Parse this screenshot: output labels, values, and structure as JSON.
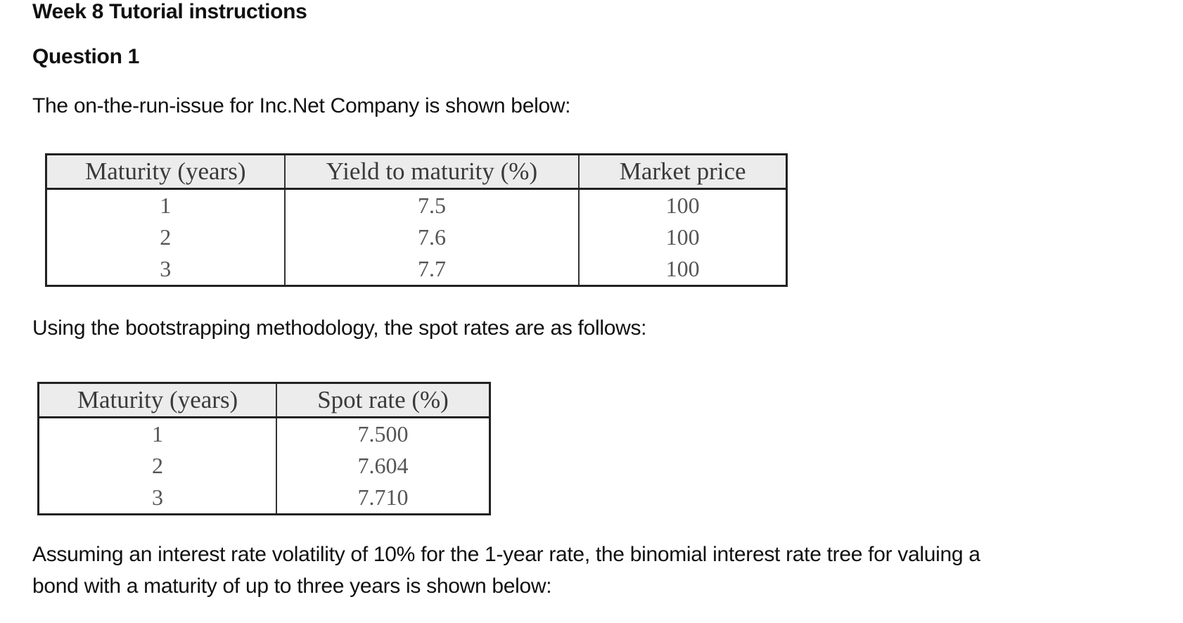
{
  "title": "Week 8 Tutorial instructions",
  "question": "Question 1",
  "intro": "The on-the-run-issue for Inc.Net Company is shown below:",
  "table1": {
    "headers": [
      "Maturity (years)",
      "Yield to maturity (%)",
      "Market price"
    ],
    "rows": [
      [
        "1",
        "7.5",
        "100"
      ],
      [
        "2",
        "7.6",
        "100"
      ],
      [
        "3",
        "7.7",
        "100"
      ]
    ]
  },
  "bootstrap_text": "Using the bootstrapping methodology, the spot rates are as follows:",
  "table2": {
    "headers": [
      "Maturity (years)",
      "Spot rate (%)"
    ],
    "rows": [
      [
        "1",
        "7.500"
      ],
      [
        "2",
        "7.604"
      ],
      [
        "3",
        "7.710"
      ]
    ]
  },
  "tree_text_line1": "Assuming an interest rate volatility of 10% for the 1-year rate, the binomial interest rate tree for valuing a",
  "tree_text_line2": "bond with a maturity of up to three years is shown below:"
}
